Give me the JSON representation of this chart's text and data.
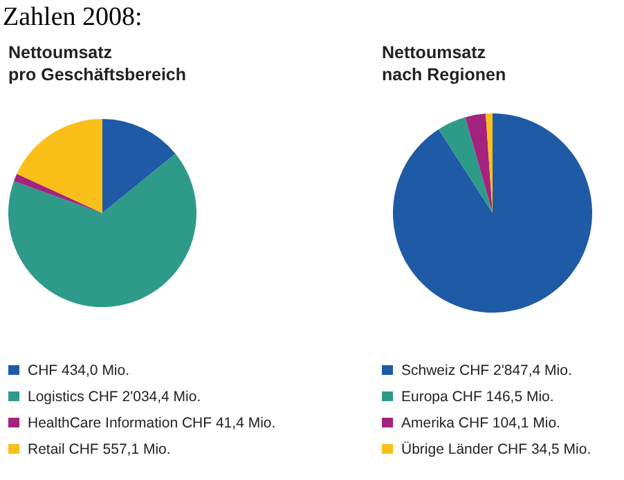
{
  "chart_data": [
    {
      "type": "pie",
      "title": "Nettoumsatz\npro Geschäftsbereich",
      "annotations": [
        "Zahlen 2008:"
      ],
      "categories": [
        "CHF 434,0 Mio.",
        "Logistics CHF 2'034,4 Mio.",
        "HealthCare Information CHF 41,4 Mio.",
        "Retail CHF 557,1 Mio."
      ],
      "values": [
        434.0,
        2034.4,
        41.4,
        557.1
      ],
      "colors": [
        "#1f5aa6",
        "#2e9a8a",
        "#a3237f",
        "#fbbf1a"
      ],
      "legend": "bottom"
    },
    {
      "type": "pie",
      "title": "Nettoumsatz\nnach Regionen",
      "categories": [
        "Schweiz CHF 2'847,4 Mio.",
        "Europa CHF 146,5 Mio.",
        "Amerika CHF 104,1 Mio.",
        "Übrige Länder CHF 34,5 Mio."
      ],
      "values": [
        2847.4,
        146.5,
        104.1,
        34.5
      ],
      "colors": [
        "#1f5aa6",
        "#2e9a8a",
        "#a3237f",
        "#fbbf1a"
      ],
      "legend": "bottom"
    }
  ]
}
